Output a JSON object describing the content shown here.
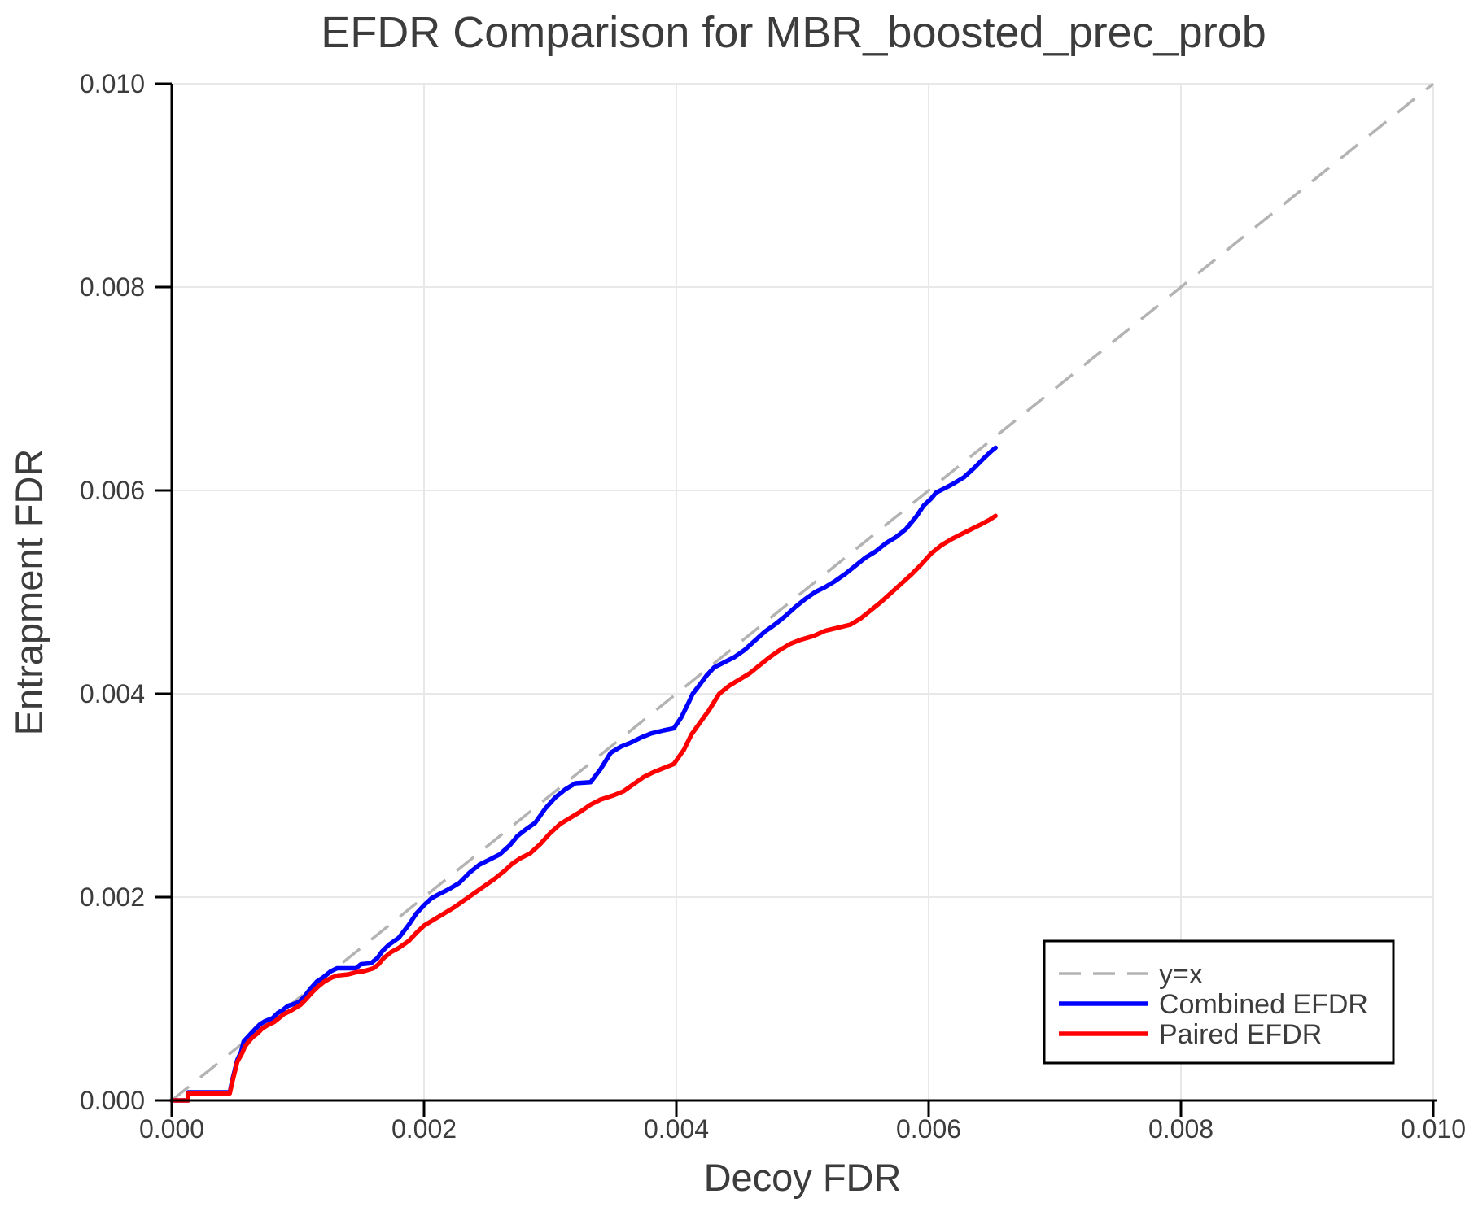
{
  "chart_data": {
    "type": "line",
    "title": "EFDR Comparison for MBR_boosted_prec_prob",
    "xlabel": "Decoy FDR",
    "ylabel": "Entrapment FDR",
    "xlim": [
      0.0,
      0.01
    ],
    "ylim": [
      0.0,
      0.01
    ],
    "xticks": [
      0.0,
      0.002,
      0.004,
      0.006,
      0.008,
      0.01
    ],
    "yticks": [
      0.0,
      0.002,
      0.004,
      0.006,
      0.008,
      0.01
    ],
    "tick_decimals": 3,
    "grid": true,
    "grid_color": "#e8e8e8",
    "axis_color": "#000000",
    "text_color": "#3c3c3c",
    "background_color": "#ffffff",
    "legend_position": "lower right",
    "legend": [
      {
        "label": "y=x",
        "color": "#b3b3b3",
        "dashed": true
      },
      {
        "label": "Combined EFDR",
        "color": "#0000ff",
        "dashed": false
      },
      {
        "label": "Paired EFDR",
        "color": "#ff0000",
        "dashed": false
      }
    ],
    "identity_line": {
      "name": "y=x",
      "color": "#b3b3b3",
      "style": "dashed",
      "x": [
        0.0,
        0.01
      ],
      "y": [
        0.0,
        0.01
      ]
    },
    "series": [
      {
        "name": "Combined EFDR",
        "color": "#0000ff",
        "style": "solid",
        "points": [
          [
            0.0,
            0.0
          ],
          [
            0.00013,
            0.0
          ],
          [
            0.00013,
            8e-05
          ],
          [
            0.00046,
            8e-05
          ],
          [
            0.00048,
            0.0002
          ],
          [
            0.0005,
            0.0003
          ],
          [
            0.00052,
            0.0004
          ],
          [
            0.00055,
            0.00048
          ],
          [
            0.00057,
            0.00058
          ],
          [
            0.0006,
            0.00062
          ],
          [
            0.00063,
            0.00066
          ],
          [
            0.00066,
            0.0007
          ],
          [
            0.0007,
            0.00075
          ],
          [
            0.00074,
            0.00078
          ],
          [
            0.0008,
            0.00081
          ],
          [
            0.00084,
            0.00086
          ],
          [
            0.00088,
            0.00089
          ],
          [
            0.00092,
            0.00093
          ],
          [
            0.00097,
            0.00095
          ],
          [
            0.00101,
            0.00097
          ],
          [
            0.00105,
            0.00102
          ],
          [
            0.0011,
            0.0011
          ],
          [
            0.00115,
            0.00117
          ],
          [
            0.0012,
            0.00121
          ],
          [
            0.00126,
            0.00127
          ],
          [
            0.00131,
            0.0013
          ],
          [
            0.00146,
            0.0013
          ],
          [
            0.0015,
            0.00134
          ],
          [
            0.00158,
            0.00135
          ],
          [
            0.00163,
            0.0014
          ],
          [
            0.00167,
            0.00147
          ],
          [
            0.00172,
            0.00153
          ],
          [
            0.0018,
            0.0016
          ],
          [
            0.00188,
            0.00173
          ],
          [
            0.00194,
            0.00184
          ],
          [
            0.002,
            0.00192
          ],
          [
            0.00206,
            0.00199
          ],
          [
            0.00212,
            0.00203
          ],
          [
            0.0022,
            0.00208
          ],
          [
            0.00228,
            0.00214
          ],
          [
            0.00236,
            0.00224
          ],
          [
            0.00244,
            0.00232
          ],
          [
            0.00252,
            0.00237
          ],
          [
            0.0026,
            0.00242
          ],
          [
            0.00268,
            0.00251
          ],
          [
            0.00274,
            0.0026
          ],
          [
            0.0028,
            0.00266
          ],
          [
            0.00288,
            0.00273
          ],
          [
            0.00296,
            0.00287
          ],
          [
            0.00304,
            0.00298
          ],
          [
            0.00312,
            0.00306
          ],
          [
            0.0032,
            0.00312
          ],
          [
            0.00332,
            0.00313
          ],
          [
            0.0034,
            0.00326
          ],
          [
            0.00348,
            0.00342
          ],
          [
            0.00356,
            0.00348
          ],
          [
            0.00364,
            0.00352
          ],
          [
            0.00372,
            0.00357
          ],
          [
            0.0038,
            0.00361
          ],
          [
            0.0039,
            0.00364
          ],
          [
            0.00398,
            0.00366
          ],
          [
            0.00404,
            0.00377
          ],
          [
            0.0041,
            0.00392
          ],
          [
            0.00413,
            0.004
          ],
          [
            0.00418,
            0.00408
          ],
          [
            0.00424,
            0.00418
          ],
          [
            0.0043,
            0.00426
          ],
          [
            0.00438,
            0.00431
          ],
          [
            0.00446,
            0.00436
          ],
          [
            0.00454,
            0.00443
          ],
          [
            0.00462,
            0.00452
          ],
          [
            0.0047,
            0.00461
          ],
          [
            0.00478,
            0.00468
          ],
          [
            0.00486,
            0.00476
          ],
          [
            0.00494,
            0.00485
          ],
          [
            0.00502,
            0.00493
          ],
          [
            0.0051,
            0.005
          ],
          [
            0.00518,
            0.00505
          ],
          [
            0.00526,
            0.00511
          ],
          [
            0.00534,
            0.00518
          ],
          [
            0.00542,
            0.00526
          ],
          [
            0.0055,
            0.00534
          ],
          [
            0.00558,
            0.0054
          ],
          [
            0.00566,
            0.00548
          ],
          [
            0.00574,
            0.00554
          ],
          [
            0.00582,
            0.00562
          ],
          [
            0.0059,
            0.00574
          ],
          [
            0.00596,
            0.00585
          ],
          [
            0.00602,
            0.00592
          ],
          [
            0.00606,
            0.00598
          ],
          [
            0.00614,
            0.00603
          ],
          [
            0.0062,
            0.00607
          ],
          [
            0.00628,
            0.00613
          ],
          [
            0.00636,
            0.00622
          ],
          [
            0.00644,
            0.00632
          ],
          [
            0.0065,
            0.00639
          ],
          [
            0.00653,
            0.00642
          ]
        ]
      },
      {
        "name": "Paired EFDR",
        "color": "#ff0000",
        "style": "solid",
        "points": [
          [
            0.0,
            0.0
          ],
          [
            0.00013,
            0.0
          ],
          [
            0.00013,
            7e-05
          ],
          [
            0.00046,
            7e-05
          ],
          [
            0.00048,
            0.00018
          ],
          [
            0.0005,
            0.00028
          ],
          [
            0.00052,
            0.00038
          ],
          [
            0.00056,
            0.00047
          ],
          [
            0.00058,
            0.00053
          ],
          [
            0.00061,
            0.00058
          ],
          [
            0.00064,
            0.00062
          ],
          [
            0.00068,
            0.00066
          ],
          [
            0.00072,
            0.00071
          ],
          [
            0.00076,
            0.00074
          ],
          [
            0.00081,
            0.00077
          ],
          [
            0.00085,
            0.00081
          ],
          [
            0.00089,
            0.00085
          ],
          [
            0.00094,
            0.00088
          ],
          [
            0.00098,
            0.00091
          ],
          [
            0.00102,
            0.00094
          ],
          [
            0.00106,
            0.00099
          ],
          [
            0.00111,
            0.00106
          ],
          [
            0.00116,
            0.00112
          ],
          [
            0.00121,
            0.00117
          ],
          [
            0.00127,
            0.00121
          ],
          [
            0.00132,
            0.00123
          ],
          [
            0.0014,
            0.00124
          ],
          [
            0.00146,
            0.00126
          ],
          [
            0.00152,
            0.00127
          ],
          [
            0.0016,
            0.0013
          ],
          [
            0.00164,
            0.00134
          ],
          [
            0.00168,
            0.0014
          ],
          [
            0.00174,
            0.00146
          ],
          [
            0.0018,
            0.0015
          ],
          [
            0.00188,
            0.00157
          ],
          [
            0.00194,
            0.00165
          ],
          [
            0.002,
            0.00172
          ],
          [
            0.00208,
            0.00178
          ],
          [
            0.00216,
            0.00184
          ],
          [
            0.00224,
            0.0019
          ],
          [
            0.00232,
            0.00197
          ],
          [
            0.0024,
            0.00204
          ],
          [
            0.00248,
            0.00211
          ],
          [
            0.00256,
            0.00218
          ],
          [
            0.00264,
            0.00226
          ],
          [
            0.0027,
            0.00233
          ],
          [
            0.00276,
            0.00238
          ],
          [
            0.00284,
            0.00243
          ],
          [
            0.00292,
            0.00252
          ],
          [
            0.003,
            0.00263
          ],
          [
            0.00308,
            0.00272
          ],
          [
            0.00316,
            0.00278
          ],
          [
            0.00324,
            0.00284
          ],
          [
            0.00332,
            0.00291
          ],
          [
            0.0034,
            0.00296
          ],
          [
            0.0035,
            0.003
          ],
          [
            0.00358,
            0.00304
          ],
          [
            0.00366,
            0.00311
          ],
          [
            0.00374,
            0.00318
          ],
          [
            0.00382,
            0.00323
          ],
          [
            0.0039,
            0.00327
          ],
          [
            0.00398,
            0.00331
          ],
          [
            0.00406,
            0.00345
          ],
          [
            0.00412,
            0.0036
          ],
          [
            0.00419,
            0.00372
          ],
          [
            0.00426,
            0.00384
          ],
          [
            0.00434,
            0.004
          ],
          [
            0.00442,
            0.00408
          ],
          [
            0.0045,
            0.00414
          ],
          [
            0.00458,
            0.0042
          ],
          [
            0.00466,
            0.00428
          ],
          [
            0.00474,
            0.00436
          ],
          [
            0.00482,
            0.00443
          ],
          [
            0.0049,
            0.00449
          ],
          [
            0.00498,
            0.00453
          ],
          [
            0.00509,
            0.00457
          ],
          [
            0.00518,
            0.00462
          ],
          [
            0.00528,
            0.00465
          ],
          [
            0.00538,
            0.00468
          ],
          [
            0.00546,
            0.00474
          ],
          [
            0.00554,
            0.00482
          ],
          [
            0.00562,
            0.0049
          ],
          [
            0.0057,
            0.00499
          ],
          [
            0.00578,
            0.00508
          ],
          [
            0.00586,
            0.00517
          ],
          [
            0.00594,
            0.00527
          ],
          [
            0.00602,
            0.00538
          ],
          [
            0.0061,
            0.00546
          ],
          [
            0.00618,
            0.00552
          ],
          [
            0.00626,
            0.00557
          ],
          [
            0.00634,
            0.00562
          ],
          [
            0.00642,
            0.00567
          ],
          [
            0.00648,
            0.00571
          ],
          [
            0.00653,
            0.00575
          ]
        ]
      }
    ]
  }
}
